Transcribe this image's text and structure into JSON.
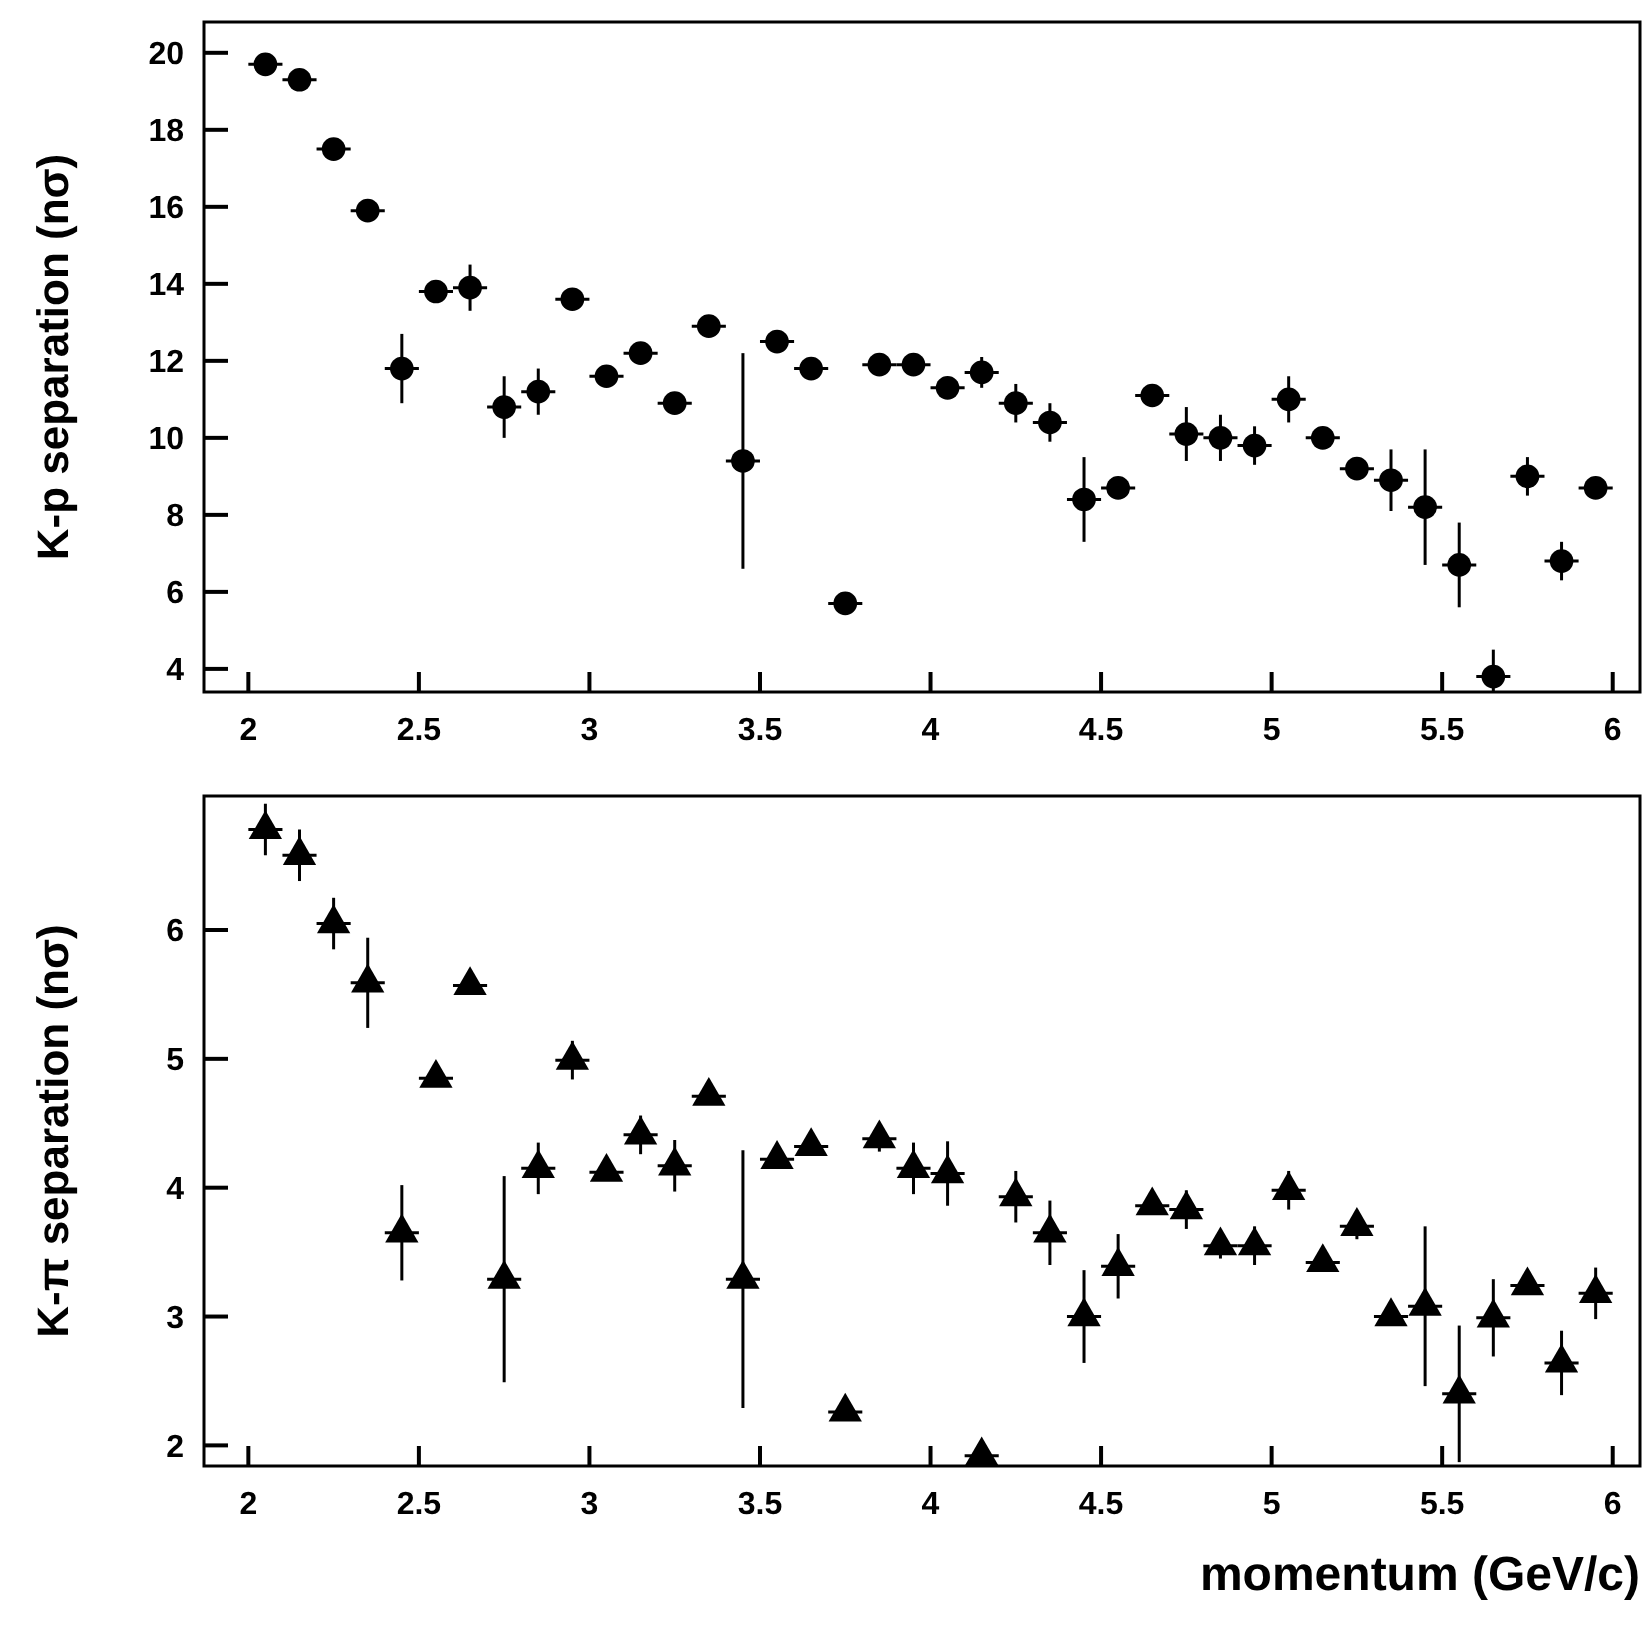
{
  "chart_data": [
    {
      "type": "scatter",
      "ylabel": "K-p separation (nσ)",
      "marker": "circle",
      "xlim": [
        1.87,
        6.08
      ],
      "ylim": [
        3.4,
        20.8
      ],
      "xticks": [
        2,
        2.5,
        3,
        3.5,
        4,
        4.5,
        5,
        5.5,
        6
      ],
      "yticks": [
        4,
        6,
        8,
        10,
        12,
        14,
        16,
        18,
        20
      ],
      "x": [
        2.05,
        2.15,
        2.25,
        2.35,
        2.45,
        2.55,
        2.65,
        2.75,
        2.85,
        2.95,
        3.05,
        3.15,
        3.25,
        3.35,
        3.45,
        3.55,
        3.65,
        3.75,
        3.85,
        3.95,
        4.05,
        4.15,
        4.25,
        4.35,
        4.45,
        4.55,
        4.65,
        4.75,
        4.85,
        4.95,
        5.05,
        5.15,
        5.25,
        5.35,
        5.45,
        5.55,
        5.65,
        5.75,
        5.85,
        5.95
      ],
      "series": [
        {
          "color": "#000000",
          "values": [
            19.7,
            19.3,
            17.5,
            15.9,
            11.8,
            13.8,
            13.9,
            10.8,
            11.2,
            13.6,
            11.6,
            12.2,
            10.9,
            12.9,
            9.4,
            12.5,
            11.8,
            5.7,
            11.9,
            11.9,
            11.3,
            11.7,
            10.9,
            10.4,
            8.4,
            8.7,
            11.1,
            10.1,
            10.0,
            9.8,
            11.0,
            10.0,
            9.2,
            8.9,
            8.2,
            6.7,
            3.8,
            9.0,
            6.8,
            8.7
          ],
          "errors": [
            null,
            null,
            null,
            null,
            0.9,
            null,
            0.6,
            0.8,
            0.6,
            null,
            null,
            null,
            null,
            null,
            2.8,
            null,
            null,
            null,
            null,
            null,
            null,
            0.4,
            0.5,
            0.5,
            1.1,
            null,
            null,
            0.7,
            0.6,
            0.5,
            0.6,
            null,
            null,
            0.8,
            1.5,
            1.1,
            0.7,
            0.5,
            0.5,
            null
          ],
          "xerrors": [
            0.05,
            0.05,
            0.05,
            0.05,
            0.05,
            0.05,
            0.05,
            0.05,
            0.05,
            0.05,
            0.05,
            0.05,
            0.05,
            0.05,
            0.05,
            0.05,
            0.05,
            0.05,
            0.05,
            0.05,
            0.05,
            0.05,
            0.05,
            0.05,
            0.05,
            0.05,
            0.05,
            0.05,
            0.05,
            0.05,
            0.05,
            0.05,
            0.05,
            0.05,
            0.05,
            0.05,
            0.05,
            0.05,
            0.05,
            0.05
          ]
        }
      ]
    },
    {
      "type": "scatter",
      "xlabel": "momentum (GeV/c)",
      "ylabel": "K-π separation (nσ)",
      "marker": "triangle",
      "xlim": [
        1.87,
        6.08
      ],
      "ylim": [
        1.84,
        7.04
      ],
      "xticks": [
        2,
        2.5,
        3,
        3.5,
        4,
        4.5,
        5,
        5.5,
        6
      ],
      "yticks": [
        2,
        3,
        4,
        5,
        6
      ],
      "x": [
        2.05,
        2.15,
        2.25,
        2.35,
        2.45,
        2.55,
        2.65,
        2.75,
        2.85,
        2.95,
        3.05,
        3.15,
        3.25,
        3.35,
        3.45,
        3.55,
        3.65,
        3.75,
        3.85,
        3.95,
        4.05,
        4.15,
        4.25,
        4.35,
        4.45,
        4.55,
        4.65,
        4.75,
        4.85,
        4.95,
        5.05,
        5.15,
        5.25,
        5.35,
        5.45,
        5.55,
        5.65,
        5.75,
        5.85,
        5.95
      ],
      "series": [
        {
          "color": "#000000",
          "values": [
            6.78,
            6.58,
            6.05,
            5.59,
            3.65,
            4.85,
            5.57,
            3.29,
            4.15,
            4.99,
            4.12,
            4.41,
            4.17,
            4.71,
            3.29,
            4.22,
            4.32,
            2.26,
            4.38,
            4.15,
            4.11,
            1.92,
            3.93,
            3.65,
            3.0,
            3.39,
            3.86,
            3.83,
            3.55,
            3.55,
            3.98,
            3.42,
            3.7,
            3.0,
            3.08,
            2.4,
            2.99,
            3.24,
            2.64,
            3.18
          ],
          "errors": [
            0.2,
            0.2,
            0.2,
            0.35,
            0.37,
            null,
            null,
            0.8,
            0.2,
            0.15,
            null,
            0.15,
            0.2,
            null,
            1.0,
            null,
            null,
            null,
            0.1,
            0.2,
            0.25,
            null,
            0.2,
            0.25,
            0.36,
            0.25,
            null,
            0.15,
            0.1,
            0.15,
            0.15,
            null,
            0.1,
            null,
            0.62,
            0.53,
            0.3,
            null,
            0.25,
            0.2
          ],
          "xerrors": [
            0.05,
            0.05,
            0.05,
            0.05,
            0.05,
            0.05,
            0.05,
            0.05,
            0.05,
            0.05,
            0.05,
            0.05,
            0.05,
            0.05,
            0.05,
            0.05,
            0.05,
            0.05,
            0.05,
            0.05,
            0.05,
            0.05,
            0.05,
            0.05,
            0.05,
            0.05,
            0.05,
            0.05,
            0.05,
            0.05,
            0.05,
            0.05,
            0.05,
            0.05,
            0.05,
            0.05,
            0.05,
            0.05,
            0.05,
            0.05
          ]
        }
      ]
    }
  ]
}
